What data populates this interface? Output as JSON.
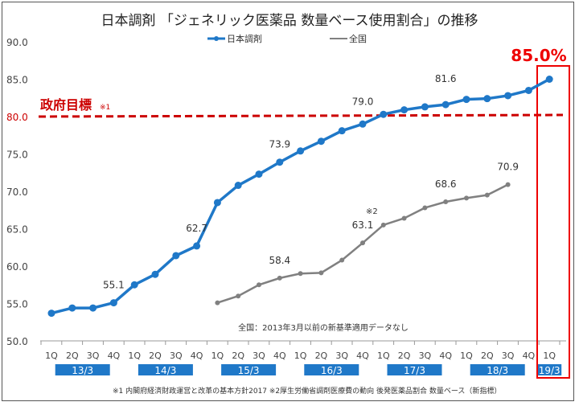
{
  "chart_data": {
    "type": "line",
    "title": "日本調剤 「ジェネリック医薬品 数量ベース使用割合」の推移",
    "ylim": [
      50,
      90
    ],
    "yticks": [
      "50.0",
      "55.0",
      "60.0",
      "65.0",
      "70.0",
      "75.0",
      "80.0",
      "85.0",
      "90.0"
    ],
    "x": [
      "1Q",
      "2Q",
      "3Q",
      "4Q",
      "1Q",
      "2Q",
      "3Q",
      "4Q",
      "1Q",
      "2Q",
      "3Q",
      "4Q",
      "1Q",
      "2Q",
      "3Q",
      "4Q",
      "1Q",
      "2Q",
      "3Q",
      "4Q",
      "1Q",
      "2Q",
      "3Q",
      "4Q",
      "1Q"
    ],
    "year_labels": [
      "13/3",
      "14/3",
      "15/3",
      "16/3",
      "17/3",
      "18/3",
      "19/3"
    ],
    "series": [
      {
        "name": "日本調剤",
        "color": "#1f78c8",
        "values": [
          53.7,
          54.4,
          54.4,
          55.1,
          57.5,
          58.9,
          61.4,
          62.7,
          68.5,
          70.8,
          72.3,
          73.9,
          75.4,
          76.7,
          78.1,
          79.0,
          80.3,
          80.9,
          81.3,
          81.6,
          82.3,
          82.4,
          82.8,
          83.5,
          85.0
        ]
      },
      {
        "name": "全国",
        "color": "#808080",
        "values": [
          null,
          null,
          null,
          null,
          null,
          null,
          null,
          null,
          55.1,
          56.0,
          57.5,
          58.4,
          59.0,
          59.1,
          60.8,
          63.1,
          65.5,
          66.4,
          67.8,
          68.6,
          69.1,
          69.5,
          70.9,
          null,
          null
        ]
      }
    ],
    "data_labels": [
      {
        "series": 0,
        "index": 3,
        "text": "55.1"
      },
      {
        "series": 0,
        "index": 7,
        "text": "62.7"
      },
      {
        "series": 0,
        "index": 11,
        "text": "73.9"
      },
      {
        "series": 0,
        "index": 15,
        "text": "79.0"
      },
      {
        "series": 0,
        "index": 19,
        "text": "81.6"
      },
      {
        "series": 1,
        "index": 11,
        "text": "58.4"
      },
      {
        "series": 1,
        "index": 15,
        "text": "63.1"
      },
      {
        "series": 1,
        "index": 19,
        "text": "68.6"
      },
      {
        "series": 1,
        "index": 22,
        "text": "70.9"
      }
    ],
    "annotations": {
      "target_value": 80.0,
      "target_label": "政府目標",
      "target_note": "※1",
      "note2": "※2",
      "highlight": "85.0%",
      "zenkoku_note": "全国：2013年3月以前の新基準適用データなし",
      "footnote": "※1  内閣府経済財政運営と改革の基本方針2017  ※2厚生労働省調剤医療費の動向  後発医薬品割合  数量ベース（新指標）"
    },
    "legend_position": "top-center",
    "accent": "#cc0000"
  }
}
